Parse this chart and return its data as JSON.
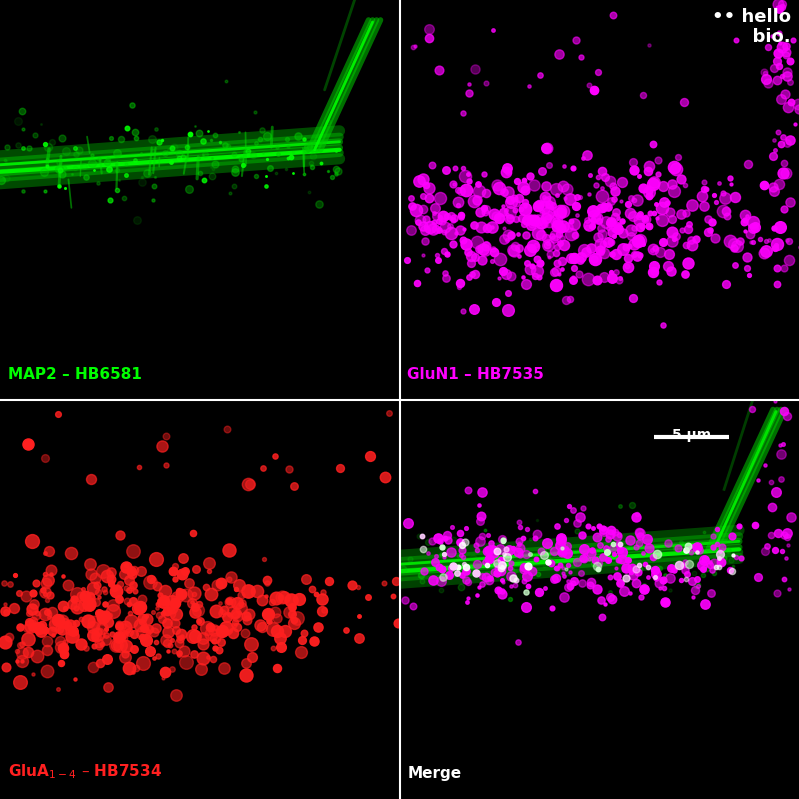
{
  "figure_size": [
    7.99,
    7.99
  ],
  "dpi": 100,
  "background_color": "#000000",
  "panels": [
    {
      "label": "MAP2 – HB6581",
      "label_color": "#00ff00"
    },
    {
      "label": "GluN1 – HB7535",
      "label_color": "#ff00ff"
    },
    {
      "label": "GluA$_{1-4}$ – HB7534",
      "label_color": "#ff2020"
    },
    {
      "label": "Merge",
      "label_color": "#ffffff"
    }
  ],
  "scalebar_label": "5 μm",
  "logo_color": "#ffffff",
  "divider_color": "#ffffff",
  "divider_lw": 1.5
}
